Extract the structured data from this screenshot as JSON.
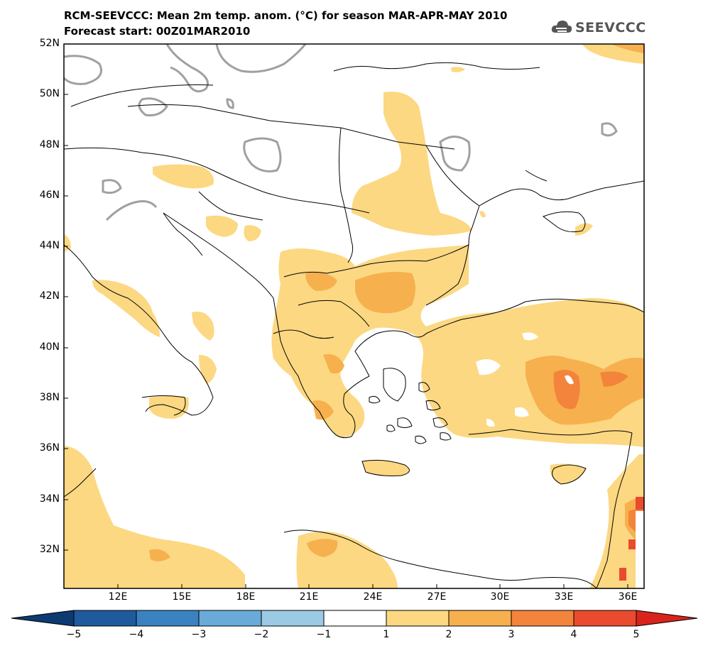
{
  "header": {
    "title_line1": "RCM-SEEVCCC: Mean 2m temp. anom. (°C) for season MAR-APR-MAY 2010",
    "title_line2": "Forecast start: 00Z01MAR2010",
    "logo_text": "SEEVCCC"
  },
  "map": {
    "extent": {
      "lon": [
        9.7,
        37.0
      ],
      "lat": [
        30.6,
        52.0
      ]
    },
    "lat_labels": [
      "52N",
      "50N",
      "48N",
      "46N",
      "44N",
      "42N",
      "40N",
      "38N",
      "36N",
      "34N",
      "32N"
    ],
    "lon_labels": [
      "12E",
      "15E",
      "18E",
      "21E",
      "24E",
      "27E",
      "30E",
      "33E",
      "36E"
    ]
  },
  "colorbar": {
    "labels": [
      "−5",
      "−4",
      "−3",
      "−2",
      "−1",
      "1",
      "2",
      "3",
      "4",
      "5"
    ],
    "colors": [
      "#1f5a9c",
      "#3a82c0",
      "#6aaad8",
      "#9ccae4",
      "#ffffff",
      "#fcd882",
      "#f7b04e",
      "#f3843c",
      "#ea4a2e"
    ],
    "arrow_low": "#0c3a72",
    "arrow_high": "#d9231c"
  },
  "colors": {
    "anom_1_2": "#fcd882",
    "anom_2_3": "#f7b04e",
    "anom_3_4": "#f3843c",
    "anom_4_5": "#ea4a2e",
    "neg_contour": "#a0a0a0"
  }
}
